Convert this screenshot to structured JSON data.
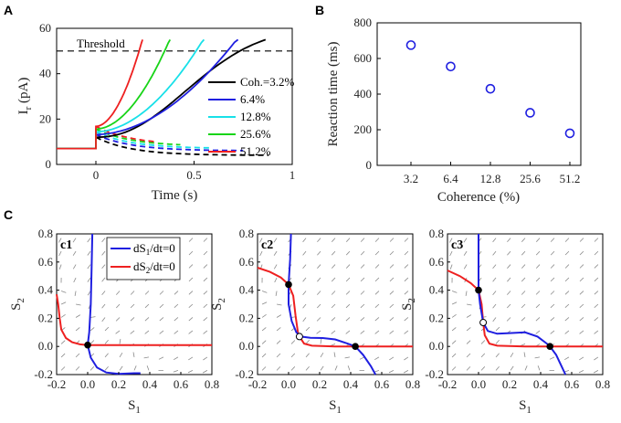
{
  "panels": {
    "a": "A",
    "b": "B",
    "c": "C",
    "c1": "c1",
    "c2": "c2",
    "c3": "c3"
  },
  "chart_data": [
    {
      "id": "A",
      "type": "line",
      "xlabel": "Time (s)",
      "ylabel": "I_r (pA)",
      "ylabel_main": "I",
      "ylabel_sub": "r",
      "ylabel_unit": " (pA)",
      "xlim": [
        -0.2,
        1
      ],
      "ylim": [
        0,
        60
      ],
      "xticks": [
        0,
        0.5,
        1
      ],
      "xtick_labels": [
        "0",
        "0.5",
        "1"
      ],
      "yticks": [
        0,
        20,
        40,
        60
      ],
      "threshold": {
        "value": 50,
        "label": "Threshold"
      },
      "baseline": 7,
      "series": [
        {
          "name": "Coh.=3.2%",
          "color": "#000000",
          "t_cross": 0.8,
          "lose_end": 4.0
        },
        {
          "name": "6.4%",
          "color": "#1f1fe0",
          "t_cross": 0.67,
          "lose_end": 6.0
        },
        {
          "name": "12.8%",
          "color": "#18e0e8",
          "t_cross": 0.51,
          "lose_end": 7.0
        },
        {
          "name": "25.6%",
          "color": "#18d418",
          "t_cross": 0.35,
          "lose_end": 8.0
        },
        {
          "name": "51.2%",
          "color": "#ee2020",
          "t_cross": 0.22,
          "lose_end": 8.5
        }
      ]
    },
    {
      "id": "B",
      "type": "scatter",
      "xlabel": "Coherence (%)",
      "ylabel": "Reaction time (ms)",
      "categories": [
        "3.2",
        "6.4",
        "12.8",
        "25.6",
        "51.2"
      ],
      "values": [
        675,
        555,
        430,
        295,
        180
      ],
      "ylim": [
        0,
        800
      ],
      "yticks": [
        0,
        200,
        400,
        600,
        800
      ],
      "marker_color": "#1f1fe0"
    },
    {
      "id": "c1",
      "type": "line",
      "xlabel": "S_1",
      "ylabel": "S_2",
      "xlim": [
        -0.2,
        0.8
      ],
      "ylim": [
        -0.2,
        0.8
      ],
      "ticks": [
        -0.2,
        0.0,
        0.2,
        0.4,
        0.6,
        0.8
      ],
      "tick_labels": [
        "-0.2",
        "0.0",
        "0.2",
        "0.4",
        "0.6",
        "0.8"
      ],
      "legend": [
        "dS_1/dt=0",
        "dS_2/dt=0"
      ],
      "legend_main": "dS",
      "legend_subs": [
        "1",
        "2"
      ],
      "legend_tail": "/dt=0",
      "nullcline_colors": [
        "#1f1fe0",
        "#ee2020"
      ],
      "stable_points": [
        [
          0.0,
          0.01
        ]
      ],
      "unstable_points": []
    },
    {
      "id": "c2",
      "type": "line",
      "xlabel": "S_1",
      "ylabel": "S_2",
      "xlim": [
        -0.2,
        0.8
      ],
      "ylim": [
        -0.2,
        0.8
      ],
      "ticks": [
        -0.2,
        0.0,
        0.2,
        0.4,
        0.6,
        0.8
      ],
      "tick_labels": [
        "-0.2",
        "0.0",
        "0.2",
        "0.4",
        "0.6",
        "0.8"
      ],
      "stable_points": [
        [
          0.0,
          0.44
        ],
        [
          0.43,
          0.0
        ]
      ],
      "unstable_points": [
        [
          0.07,
          0.07
        ]
      ]
    },
    {
      "id": "c3",
      "type": "line",
      "xlabel": "S_1",
      "ylabel": "S_2",
      "xlim": [
        -0.2,
        0.8
      ],
      "ylim": [
        -0.2,
        0.8
      ],
      "ticks": [
        -0.2,
        0.0,
        0.2,
        0.4,
        0.6,
        0.8
      ],
      "tick_labels": [
        "-0.2",
        "0.0",
        "0.2",
        "0.4",
        "0.6",
        "0.8"
      ],
      "stable_points": [
        [
          0.0,
          0.4
        ],
        [
          0.46,
          0.0
        ]
      ],
      "unstable_points": [
        [
          0.03,
          0.17
        ]
      ]
    }
  ]
}
